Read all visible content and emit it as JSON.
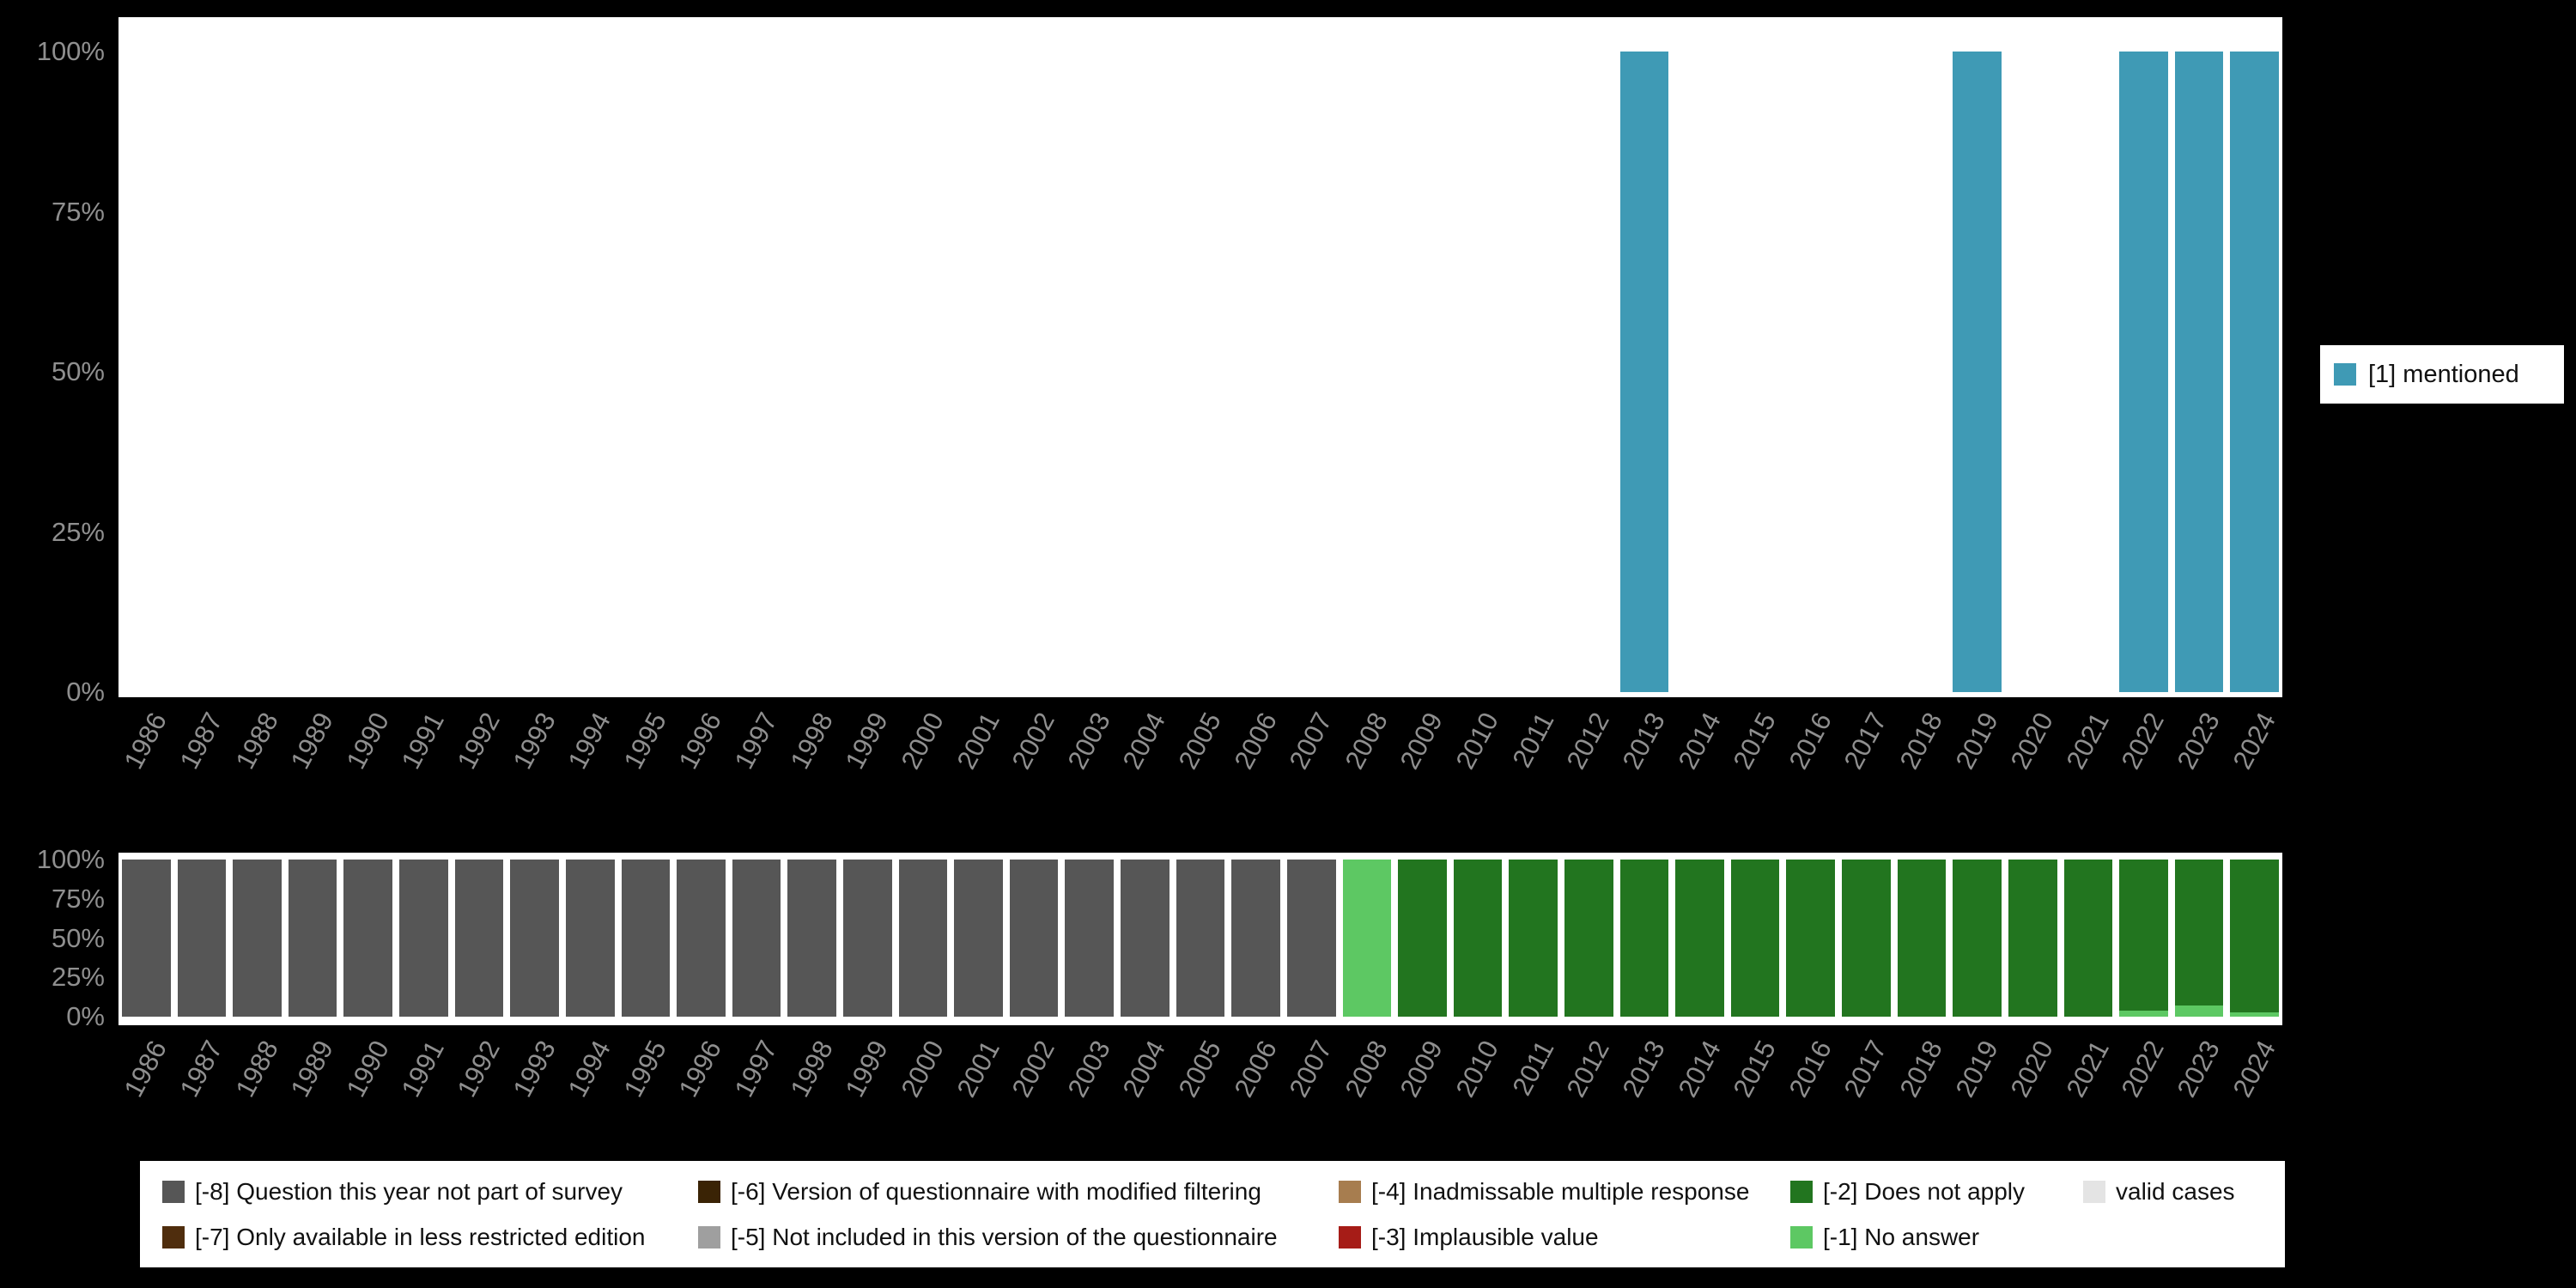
{
  "colors": {
    "background": "#000000",
    "plot_bg": "#ffffff",
    "axis_text": "#8f8f8f",
    "legend_text": "#111111",
    "mentioned": "#3f9ab5",
    "minus8": "#565656",
    "minus7": "#4f2d0d",
    "minus6": "#3a2305",
    "minus5": "#9f9f9f",
    "minus4": "#a77d4f",
    "minus3": "#a61c17",
    "minus2": "#22751f",
    "minus1": "#5dc863",
    "valid": "#e4e4e4"
  },
  "legend_right": {
    "label": "[1] mentioned",
    "color_key": "mentioned"
  },
  "missing_legend": {
    "rows": [
      [
        {
          "label": "[-8] Question this year not part of survey",
          "color_key": "minus8"
        },
        {
          "label": "[-6] Version of questionnaire with modified filtering",
          "color_key": "minus6"
        },
        {
          "label": "[-4] Inadmissable multiple response",
          "color_key": "minus4"
        },
        {
          "label": "[-2] Does not apply",
          "color_key": "minus2"
        },
        {
          "label": "valid cases",
          "color_key": "valid"
        }
      ],
      [
        {
          "label": "[-7] Only available in less restricted edition",
          "color_key": "minus7"
        },
        {
          "label": "[-5] Not included in this version of the questionnaire",
          "color_key": "minus5"
        },
        {
          "label": "[-3] Implausible value",
          "color_key": "minus3"
        },
        {
          "label": "[-1] No answer",
          "color_key": "minus1"
        }
      ]
    ]
  },
  "chart_data": [
    {
      "type": "bar",
      "x": [
        1986,
        1987,
        1988,
        1989,
        1990,
        1991,
        1992,
        1993,
        1994,
        1995,
        1996,
        1997,
        1998,
        1999,
        2000,
        2001,
        2002,
        2003,
        2004,
        2005,
        2006,
        2007,
        2008,
        2009,
        2010,
        2011,
        2012,
        2013,
        2014,
        2015,
        2016,
        2017,
        2018,
        2019,
        2020,
        2021,
        2022,
        2023,
        2024
      ],
      "series": [
        {
          "name": "[1] mentioned",
          "color_key": "mentioned",
          "values": [
            0,
            0,
            0,
            0,
            0,
            0,
            0,
            0,
            0,
            0,
            0,
            0,
            0,
            0,
            0,
            0,
            0,
            0,
            0,
            0,
            0,
            0,
            0,
            0,
            0,
            0,
            0,
            100,
            0,
            0,
            0,
            0,
            0,
            100,
            0,
            0,
            100,
            100,
            100
          ]
        }
      ],
      "ylim": [
        0,
        100
      ],
      "yticks": [
        "0%",
        "25%",
        "50%",
        "75%",
        "100%"
      ],
      "legend_position": "right",
      "grid": false
    },
    {
      "type": "stacked_bar",
      "x": [
        1986,
        1987,
        1988,
        1989,
        1990,
        1991,
        1992,
        1993,
        1994,
        1995,
        1996,
        1997,
        1998,
        1999,
        2000,
        2001,
        2002,
        2003,
        2004,
        2005,
        2006,
        2007,
        2008,
        2009,
        2010,
        2011,
        2012,
        2013,
        2014,
        2015,
        2016,
        2017,
        2018,
        2019,
        2020,
        2021,
        2022,
        2023,
        2024
      ],
      "series": [
        {
          "name": "[-1] No answer",
          "color_key": "minus1",
          "values": [
            0,
            0,
            0,
            0,
            0,
            0,
            0,
            0,
            0,
            0,
            0,
            0,
            0,
            0,
            0,
            0,
            0,
            0,
            0,
            0,
            0,
            0,
            100,
            0,
            0,
            0,
            0,
            0,
            0,
            0,
            0,
            0,
            0,
            0,
            0,
            0,
            4,
            7,
            3
          ]
        },
        {
          "name": "[-2] Does not apply",
          "color_key": "minus2",
          "values": [
            0,
            0,
            0,
            0,
            0,
            0,
            0,
            0,
            0,
            0,
            0,
            0,
            0,
            0,
            0,
            0,
            0,
            0,
            0,
            0,
            0,
            0,
            0,
            100,
            100,
            100,
            100,
            100,
            100,
            100,
            100,
            100,
            100,
            100,
            100,
            100,
            96,
            93,
            97
          ]
        },
        {
          "name": "[-8] Question this year not part of survey",
          "color_key": "minus8",
          "values": [
            100,
            100,
            100,
            100,
            100,
            100,
            100,
            100,
            100,
            100,
            100,
            100,
            100,
            100,
            100,
            100,
            100,
            100,
            100,
            100,
            100,
            100,
            0,
            0,
            0,
            0,
            0,
            0,
            0,
            0,
            0,
            0,
            0,
            0,
            0,
            0,
            0,
            0,
            0
          ]
        }
      ],
      "ylim": [
        0,
        100
      ],
      "yticks": [
        "0%",
        "25%",
        "50%",
        "75%",
        "100%"
      ],
      "grid": false
    }
  ]
}
